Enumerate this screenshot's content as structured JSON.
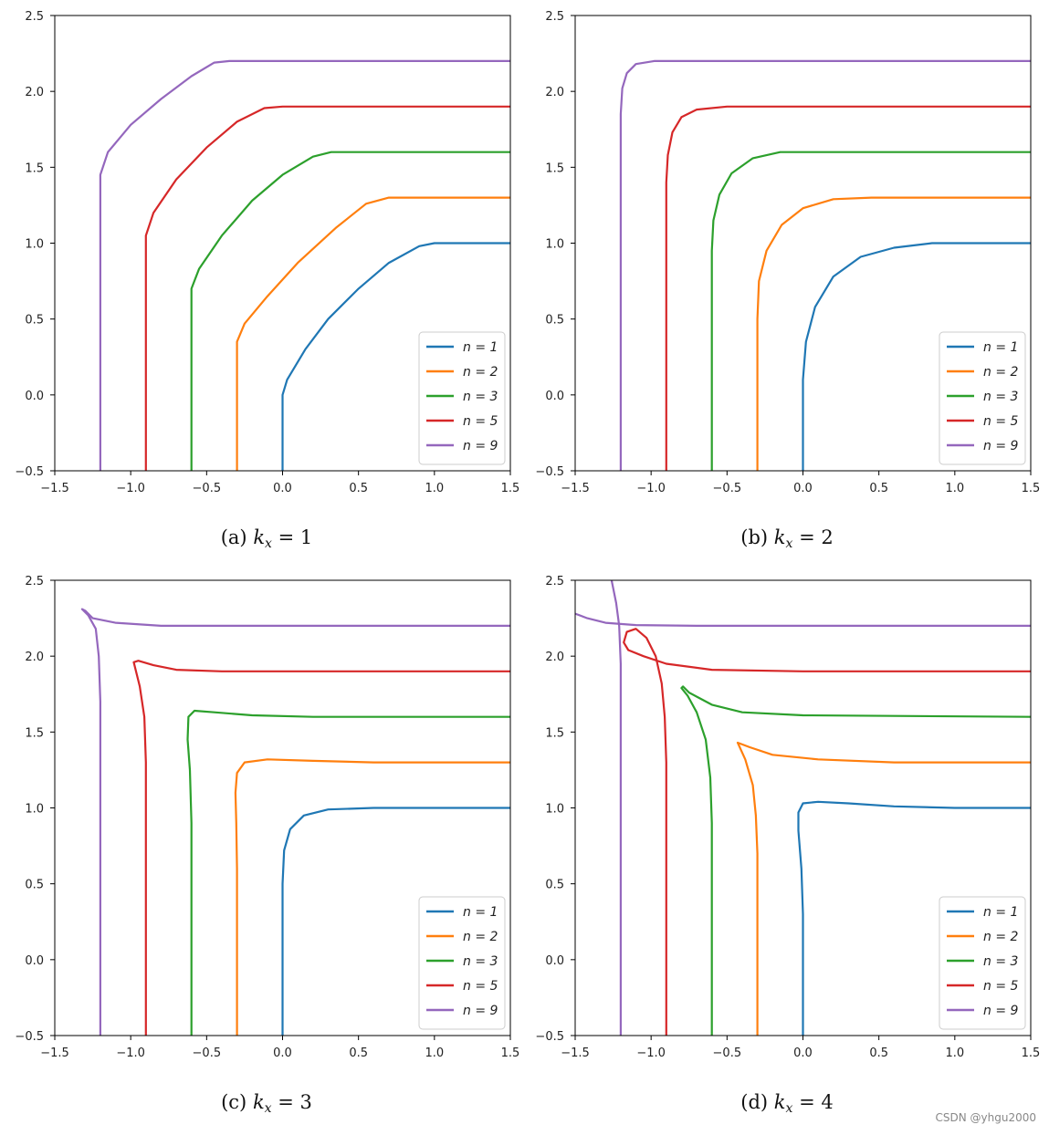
{
  "figure": {
    "watermark": "CSDN @yhgu2000"
  },
  "chart_data": [
    {
      "type": "line",
      "panel_label": "(a)",
      "caption_var": "k",
      "caption_sub": "x",
      "caption_eq": "= 1",
      "xlim": [
        -1.5,
        1.5
      ],
      "ylim": [
        -0.5,
        2.5
      ],
      "xticks": [
        "−1.5",
        "−1.0",
        "−0.5",
        "0.0",
        "0.5",
        "1.0",
        "1.5"
      ],
      "xtick_values": [
        -1.5,
        -1.0,
        -0.5,
        0.0,
        0.5,
        1.0,
        1.5
      ],
      "yticks": [
        "−0.5",
        "0.0",
        "0.5",
        "1.0",
        "1.5",
        "2.0",
        "2.5"
      ],
      "ytick_values": [
        -0.5,
        0.0,
        0.5,
        1.0,
        1.5,
        2.0,
        2.5
      ],
      "legend_position": "bottom-right",
      "series": [
        {
          "name": "n = 1",
          "color": "#1f77b4",
          "points": [
            [
              0.0,
              -0.5
            ],
            [
              0.0,
              0.0
            ],
            [
              0.03,
              0.1
            ],
            [
              0.15,
              0.3
            ],
            [
              0.3,
              0.5
            ],
            [
              0.5,
              0.7
            ],
            [
              0.7,
              0.87
            ],
            [
              0.9,
              0.98
            ],
            [
              1.0,
              1.0
            ],
            [
              1.5,
              1.0
            ]
          ]
        },
        {
          "name": "n = 2",
          "color": "#ff7f0e",
          "points": [
            [
              -0.3,
              -0.5
            ],
            [
              -0.3,
              0.35
            ],
            [
              -0.25,
              0.47
            ],
            [
              -0.1,
              0.65
            ],
            [
              0.1,
              0.87
            ],
            [
              0.35,
              1.1
            ],
            [
              0.55,
              1.26
            ],
            [
              0.7,
              1.3
            ],
            [
              1.5,
              1.3
            ]
          ]
        },
        {
          "name": "n = 3",
          "color": "#2ca02c",
          "points": [
            [
              -0.6,
              -0.5
            ],
            [
              -0.6,
              0.7
            ],
            [
              -0.55,
              0.83
            ],
            [
              -0.4,
              1.05
            ],
            [
              -0.2,
              1.28
            ],
            [
              0.0,
              1.45
            ],
            [
              0.2,
              1.57
            ],
            [
              0.32,
              1.6
            ],
            [
              1.5,
              1.6
            ]
          ]
        },
        {
          "name": "n = 5",
          "color": "#d62728",
          "points": [
            [
              -0.9,
              -0.5
            ],
            [
              -0.9,
              1.05
            ],
            [
              -0.85,
              1.2
            ],
            [
              -0.7,
              1.42
            ],
            [
              -0.5,
              1.63
            ],
            [
              -0.3,
              1.8
            ],
            [
              -0.12,
              1.89
            ],
            [
              0.0,
              1.9
            ],
            [
              1.5,
              1.9
            ]
          ]
        },
        {
          "name": "n = 9",
          "color": "#9467bd",
          "points": [
            [
              -1.2,
              -0.5
            ],
            [
              -1.2,
              1.45
            ],
            [
              -1.15,
              1.6
            ],
            [
              -1.0,
              1.78
            ],
            [
              -0.8,
              1.95
            ],
            [
              -0.6,
              2.1
            ],
            [
              -0.45,
              2.19
            ],
            [
              -0.35,
              2.2
            ],
            [
              1.5,
              2.2
            ]
          ]
        }
      ]
    },
    {
      "type": "line",
      "panel_label": "(b)",
      "caption_var": "k",
      "caption_sub": "x",
      "caption_eq": "= 2",
      "xlim": [
        -1.5,
        1.5
      ],
      "ylim": [
        -0.5,
        2.5
      ],
      "xticks": [
        "−1.5",
        "−1.0",
        "−0.5",
        "0.0",
        "0.5",
        "1.0",
        "1.5"
      ],
      "xtick_values": [
        -1.5,
        -1.0,
        -0.5,
        0.0,
        0.5,
        1.0,
        1.5
      ],
      "yticks": [
        "−0.5",
        "0.0",
        "0.5",
        "1.0",
        "1.5",
        "2.0",
        "2.5"
      ],
      "ytick_values": [
        -0.5,
        0.0,
        0.5,
        1.0,
        1.5,
        2.0,
        2.5
      ],
      "legend_position": "bottom-right",
      "series": [
        {
          "name": "n = 1",
          "color": "#1f77b4",
          "points": [
            [
              0.0,
              -0.5
            ],
            [
              0.0,
              0.1
            ],
            [
              0.02,
              0.35
            ],
            [
              0.08,
              0.58
            ],
            [
              0.2,
              0.78
            ],
            [
              0.38,
              0.91
            ],
            [
              0.6,
              0.97
            ],
            [
              0.85,
              1.0
            ],
            [
              1.5,
              1.0
            ]
          ]
        },
        {
          "name": "n = 2",
          "color": "#ff7f0e",
          "points": [
            [
              -0.3,
              -0.5
            ],
            [
              -0.3,
              0.5
            ],
            [
              -0.29,
              0.75
            ],
            [
              -0.24,
              0.95
            ],
            [
              -0.14,
              1.12
            ],
            [
              0.0,
              1.23
            ],
            [
              0.2,
              1.29
            ],
            [
              0.45,
              1.3
            ],
            [
              1.5,
              1.3
            ]
          ]
        },
        {
          "name": "n = 3",
          "color": "#2ca02c",
          "points": [
            [
              -0.6,
              -0.5
            ],
            [
              -0.6,
              0.95
            ],
            [
              -0.59,
              1.15
            ],
            [
              -0.55,
              1.32
            ],
            [
              -0.47,
              1.46
            ],
            [
              -0.33,
              1.56
            ],
            [
              -0.15,
              1.6
            ],
            [
              0.1,
              1.6
            ],
            [
              1.5,
              1.6
            ]
          ]
        },
        {
          "name": "n = 5",
          "color": "#d62728",
          "points": [
            [
              -0.9,
              -0.5
            ],
            [
              -0.9,
              1.4
            ],
            [
              -0.89,
              1.58
            ],
            [
              -0.86,
              1.73
            ],
            [
              -0.8,
              1.83
            ],
            [
              -0.7,
              1.88
            ],
            [
              -0.5,
              1.9
            ],
            [
              1.5,
              1.9
            ]
          ]
        },
        {
          "name": "n = 9",
          "color": "#9467bd",
          "points": [
            [
              -1.2,
              -0.5
            ],
            [
              -1.2,
              1.85
            ],
            [
              -1.19,
              2.02
            ],
            [
              -1.16,
              2.12
            ],
            [
              -1.1,
              2.18
            ],
            [
              -0.98,
              2.2
            ],
            [
              -0.8,
              2.2
            ],
            [
              1.5,
              2.2
            ]
          ]
        }
      ]
    },
    {
      "type": "line",
      "panel_label": "(c)",
      "caption_var": "k",
      "caption_sub": "x",
      "caption_eq": "= 3",
      "xlim": [
        -1.5,
        1.5
      ],
      "ylim": [
        -0.5,
        2.5
      ],
      "xticks": [
        "−1.5",
        "−1.0",
        "−0.5",
        "0.0",
        "0.5",
        "1.0",
        "1.5"
      ],
      "xtick_values": [
        -1.5,
        -1.0,
        -0.5,
        0.0,
        0.5,
        1.0,
        1.5
      ],
      "yticks": [
        "−0.5",
        "0.0",
        "0.5",
        "1.0",
        "1.5",
        "2.0",
        "2.5"
      ],
      "ytick_values": [
        -0.5,
        0.0,
        0.5,
        1.0,
        1.5,
        2.0,
        2.5
      ],
      "legend_position": "bottom-right",
      "series": [
        {
          "name": "n = 1",
          "color": "#1f77b4",
          "points": [
            [
              0.0,
              -0.5
            ],
            [
              0.0,
              0.5
            ],
            [
              0.01,
              0.72
            ],
            [
              0.05,
              0.86
            ],
            [
              0.14,
              0.95
            ],
            [
              0.3,
              0.99
            ],
            [
              0.6,
              1.0
            ],
            [
              1.5,
              1.0
            ]
          ]
        },
        {
          "name": "n = 2",
          "color": "#ff7f0e",
          "points": [
            [
              -0.3,
              -0.5
            ],
            [
              -0.3,
              0.6
            ],
            [
              -0.305,
              0.9
            ],
            [
              -0.31,
              1.1
            ],
            [
              -0.3,
              1.23
            ],
            [
              -0.25,
              1.3
            ],
            [
              -0.1,
              1.32
            ],
            [
              0.2,
              1.31
            ],
            [
              0.6,
              1.3
            ],
            [
              1.5,
              1.3
            ]
          ]
        },
        {
          "name": "n = 3",
          "color": "#2ca02c",
          "points": [
            [
              -0.6,
              -0.5
            ],
            [
              -0.6,
              0.9
            ],
            [
              -0.61,
              1.25
            ],
            [
              -0.625,
              1.45
            ],
            [
              -0.62,
              1.6
            ],
            [
              -0.58,
              1.64
            ],
            [
              -0.45,
              1.63
            ],
            [
              -0.2,
              1.61
            ],
            [
              0.2,
              1.6
            ],
            [
              1.5,
              1.6
            ]
          ]
        },
        {
          "name": "n = 5",
          "color": "#d62728",
          "points": [
            [
              -0.9,
              -0.5
            ],
            [
              -0.9,
              1.3
            ],
            [
              -0.91,
              1.6
            ],
            [
              -0.94,
              1.8
            ],
            [
              -0.98,
              1.96
            ],
            [
              -0.95,
              1.97
            ],
            [
              -0.85,
              1.94
            ],
            [
              -0.7,
              1.91
            ],
            [
              -0.4,
              1.9
            ],
            [
              1.5,
              1.9
            ]
          ]
        },
        {
          "name": "n = 9",
          "color": "#9467bd",
          "points": [
            [
              -1.2,
              -0.5
            ],
            [
              -1.2,
              1.7
            ],
            [
              -1.21,
              2.0
            ],
            [
              -1.23,
              2.18
            ],
            [
              -1.28,
              2.27
            ],
            [
              -1.32,
              2.31
            ],
            [
              -1.3,
              2.3
            ],
            [
              -1.25,
              2.25
            ],
            [
              -1.1,
              2.22
            ],
            [
              -0.8,
              2.2
            ],
            [
              1.5,
              2.2
            ]
          ]
        }
      ]
    },
    {
      "type": "line",
      "panel_label": "(d)",
      "caption_var": "k",
      "caption_sub": "x",
      "caption_eq": "= 4",
      "xlim": [
        -1.5,
        1.5
      ],
      "ylim": [
        -0.5,
        2.5
      ],
      "xticks": [
        "−1.5",
        "−1.0",
        "−0.5",
        "0.0",
        "0.5",
        "1.0",
        "1.5"
      ],
      "xtick_values": [
        -1.5,
        -1.0,
        -0.5,
        0.0,
        0.5,
        1.0,
        1.5
      ],
      "yticks": [
        "−0.5",
        "0.0",
        "0.5",
        "1.0",
        "1.5",
        "2.0",
        "2.5"
      ],
      "ytick_values": [
        -0.5,
        0.0,
        0.5,
        1.0,
        1.5,
        2.0,
        2.5
      ],
      "legend_position": "bottom-right",
      "series": [
        {
          "name": "n = 1",
          "color": "#1f77b4",
          "points": [
            [
              0.0,
              -0.5
            ],
            [
              0.0,
              0.3
            ],
            [
              -0.01,
              0.6
            ],
            [
              -0.03,
              0.85
            ],
            [
              -0.03,
              0.97
            ],
            [
              0.0,
              1.03
            ],
            [
              0.1,
              1.04
            ],
            [
              0.3,
              1.03
            ],
            [
              0.6,
              1.01
            ],
            [
              1.0,
              1.0
            ],
            [
              1.5,
              1.0
            ]
          ]
        },
        {
          "name": "n = 2",
          "color": "#ff7f0e",
          "points": [
            [
              -0.3,
              -0.5
            ],
            [
              -0.3,
              0.7
            ],
            [
              -0.31,
              0.95
            ],
            [
              -0.33,
              1.15
            ],
            [
              -0.38,
              1.32
            ],
            [
              -0.43,
              1.43
            ],
            [
              -0.35,
              1.4
            ],
            [
              -0.2,
              1.35
            ],
            [
              0.1,
              1.32
            ],
            [
              0.6,
              1.3
            ],
            [
              1.5,
              1.3
            ]
          ]
        },
        {
          "name": "n = 3",
          "color": "#2ca02c",
          "points": [
            [
              -0.6,
              -0.5
            ],
            [
              -0.6,
              0.9
            ],
            [
              -0.61,
              1.2
            ],
            [
              -0.64,
              1.45
            ],
            [
              -0.7,
              1.63
            ],
            [
              -0.76,
              1.74
            ],
            [
              -0.8,
              1.79
            ],
            [
              -0.79,
              1.8
            ],
            [
              -0.75,
              1.76
            ],
            [
              -0.6,
              1.68
            ],
            [
              -0.4,
              1.63
            ],
            [
              0.0,
              1.61
            ],
            [
              1.5,
              1.6
            ]
          ]
        },
        {
          "name": "n = 5",
          "color": "#d62728",
          "points": [
            [
              -0.9,
              -0.5
            ],
            [
              -0.9,
              1.3
            ],
            [
              -0.91,
              1.6
            ],
            [
              -0.93,
              1.82
            ],
            [
              -0.97,
              2.0
            ],
            [
              -1.03,
              2.12
            ],
            [
              -1.1,
              2.18
            ],
            [
              -1.16,
              2.16
            ],
            [
              -1.18,
              2.09
            ],
            [
              -1.15,
              2.04
            ],
            [
              -1.05,
              2.0
            ],
            [
              -0.9,
              1.95
            ],
            [
              -0.6,
              1.91
            ],
            [
              0.0,
              1.9
            ],
            [
              1.5,
              1.9
            ]
          ]
        },
        {
          "name": "n = 9",
          "color": "#9467bd",
          "points": [
            [
              -1.2,
              -0.5
            ],
            [
              -1.2,
              1.5
            ],
            [
              -1.2,
              1.95
            ],
            [
              -1.21,
              2.2
            ],
            [
              -1.23,
              2.35
            ],
            [
              -1.26,
              2.5
            ]
          ]
        },
        {
          "name": "",
          "color": "#9467bd",
          "points": [
            [
              -1.5,
              2.28
            ],
            [
              -1.42,
              2.25
            ],
            [
              -1.3,
              2.22
            ],
            [
              -1.1,
              2.205
            ],
            [
              -0.7,
              2.2
            ],
            [
              1.5,
              2.2
            ]
          ]
        }
      ]
    }
  ]
}
